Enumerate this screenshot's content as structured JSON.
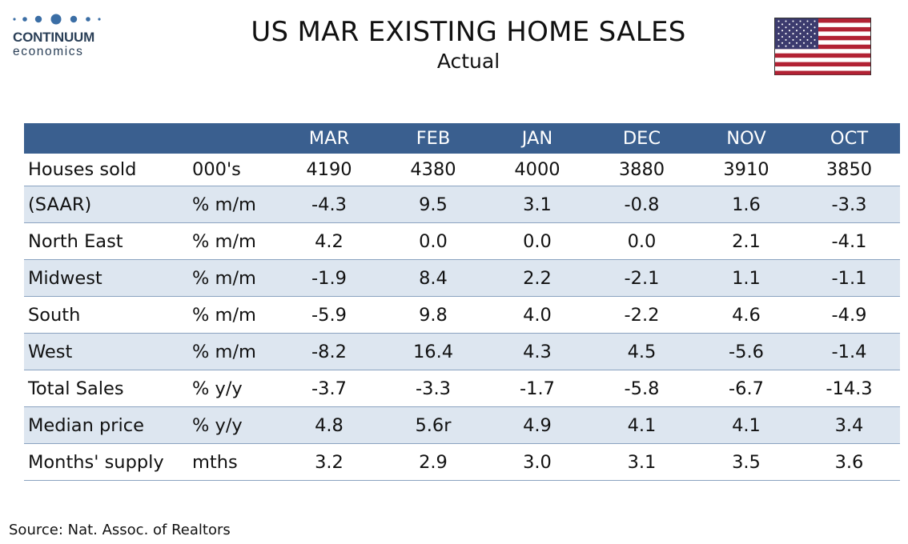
{
  "logo": {
    "line1": "CONTINUUM",
    "line2": "economics"
  },
  "title": "US MAR EXISTING HOME SALES",
  "subtitle": "Actual",
  "colors": {
    "header": "#3a5f8f",
    "shade": "#dde6f0",
    "logo": "#2a3f57"
  },
  "chart_data": {
    "type": "table",
    "columns": [
      "",
      "",
      "MAR",
      "FEB",
      "JAN",
      "DEC",
      "NOV",
      "OCT"
    ],
    "rows": [
      {
        "label": "Houses sold",
        "unit": "000's",
        "values": [
          "4190",
          "4380",
          "4000",
          "3880",
          "3910",
          "3850"
        ]
      },
      {
        "label": "(SAAR)",
        "unit": "% m/m",
        "values": [
          "-4.3",
          "9.5",
          "3.1",
          "-0.8",
          "1.6",
          "-3.3"
        ]
      },
      {
        "label": "North East",
        "unit": "% m/m",
        "values": [
          "4.2",
          "0.0",
          "0.0",
          "0.0",
          "2.1",
          "-4.1"
        ]
      },
      {
        "label": "Midwest",
        "unit": "% m/m",
        "values": [
          "-1.9",
          "8.4",
          "2.2",
          "-2.1",
          "1.1",
          "-1.1"
        ]
      },
      {
        "label": "South",
        "unit": "% m/m",
        "values": [
          "-5.9",
          "9.8",
          "4.0",
          "-2.2",
          "4.6",
          "-4.9"
        ]
      },
      {
        "label": "West",
        "unit": "% m/m",
        "values": [
          "-8.2",
          "16.4",
          "4.3",
          "4.5",
          "-5.6",
          "-1.4"
        ]
      },
      {
        "label": "Total Sales",
        "unit": "% y/y",
        "values": [
          "-3.7",
          "-3.3",
          "-1.7",
          "-5.8",
          "-6.7",
          "-14.3"
        ]
      },
      {
        "label": "Median price",
        "unit": "% y/y",
        "values": [
          "4.8",
          "5.6r",
          "4.9",
          "4.1",
          "4.1",
          "3.4"
        ]
      },
      {
        "label": "Months' supply",
        "unit": "mths",
        "values": [
          "3.2",
          "2.9",
          "3.0",
          "3.1",
          "3.5",
          "3.6"
        ]
      }
    ]
  },
  "source": "Source: Nat. Assoc. of Realtors"
}
